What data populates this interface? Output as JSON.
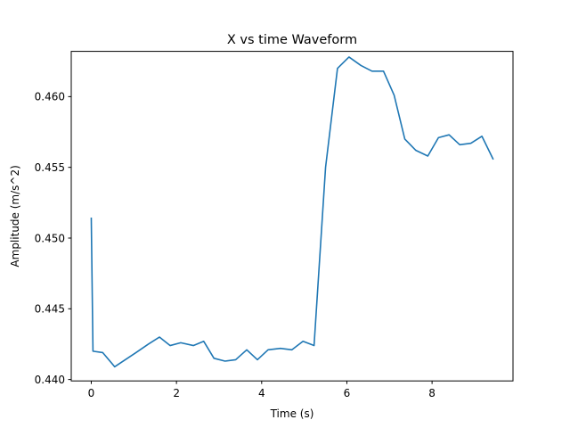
{
  "chart_data": {
    "type": "line",
    "title": "X vs time Waveform",
    "xlabel": "Time (s)",
    "ylabel": "Amplitude (m/s^2)",
    "xlim": [
      -0.47,
      9.9
    ],
    "ylim": [
      0.4399,
      0.4632
    ],
    "xticks": [
      0,
      2,
      4,
      6,
      8
    ],
    "xtick_labels": [
      "0",
      "2",
      "4",
      "6",
      "8"
    ],
    "yticks": [
      0.44,
      0.445,
      0.45,
      0.455,
      0.46
    ],
    "ytick_labels": [
      "0.440",
      "0.445",
      "0.450",
      "0.455",
      "0.460"
    ],
    "grid": false,
    "series": [
      {
        "color": "#1f77b4",
        "x": [
          0,
          0.04,
          0.27,
          0.55,
          1.05,
          1.34,
          1.6,
          1.85,
          2.1,
          2.4,
          2.64,
          2.88,
          3.14,
          3.39,
          3.65,
          3.9,
          4.15,
          4.44,
          4.71,
          4.97,
          5.23,
          5.5,
          5.78,
          6.05,
          6.33,
          6.59,
          6.86,
          7.11,
          7.36,
          7.62,
          7.9,
          8.15,
          8.4,
          8.65,
          8.91,
          9.17,
          9.43
        ],
        "y": [
          0.4514,
          0.442,
          0.4419,
          0.4409,
          0.4419,
          0.4425,
          0.443,
          0.4424,
          0.4426,
          0.4424,
          0.4427,
          0.4415,
          0.4413,
          0.4414,
          0.4421,
          0.4414,
          0.4421,
          0.4422,
          0.4421,
          0.4427,
          0.4424,
          0.455,
          0.462,
          0.4628,
          0.4622,
          0.4618,
          0.4618,
          0.4601,
          0.457,
          0.4562,
          0.4558,
          0.4571,
          0.4573,
          0.4566,
          0.4567,
          0.4572,
          0.4556
        ]
      }
    ]
  }
}
